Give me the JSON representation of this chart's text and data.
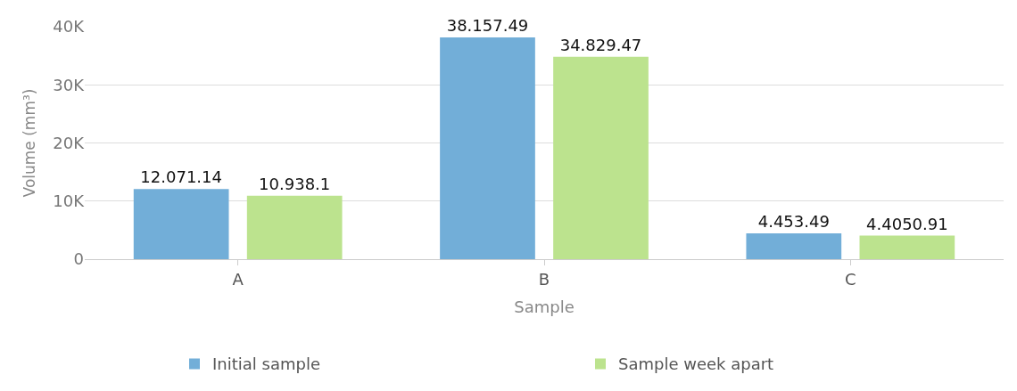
{
  "chart_data": {
    "type": "bar",
    "xlabel": "Sample",
    "ylabel": "Volume (mm³)",
    "categories": [
      "A",
      "B",
      "C"
    ],
    "series": [
      {
        "name": "Initial sample",
        "color": "#72aed8",
        "values": [
          12071.14,
          38157.49,
          4453.49
        ],
        "value_labels": [
          "12.071.14",
          "38.157.49",
          "4.453.49"
        ]
      },
      {
        "name": "Sample week apart",
        "color": "#bce38e",
        "values": [
          10938.1,
          34829.47,
          4050.91
        ],
        "value_labels": [
          "10.938.1",
          "34.829.47",
          "4.4050.91"
        ]
      }
    ],
    "ylim": [
      0,
      40000
    ],
    "yticks": [
      {
        "value": 0,
        "label": "0"
      },
      {
        "value": 10000,
        "label": "10K"
      },
      {
        "value": 20000,
        "label": "20K"
      },
      {
        "value": 30000,
        "label": "30K"
      },
      {
        "value": 40000,
        "label": "40K"
      }
    ],
    "grid": "y",
    "legend": "bottom"
  }
}
